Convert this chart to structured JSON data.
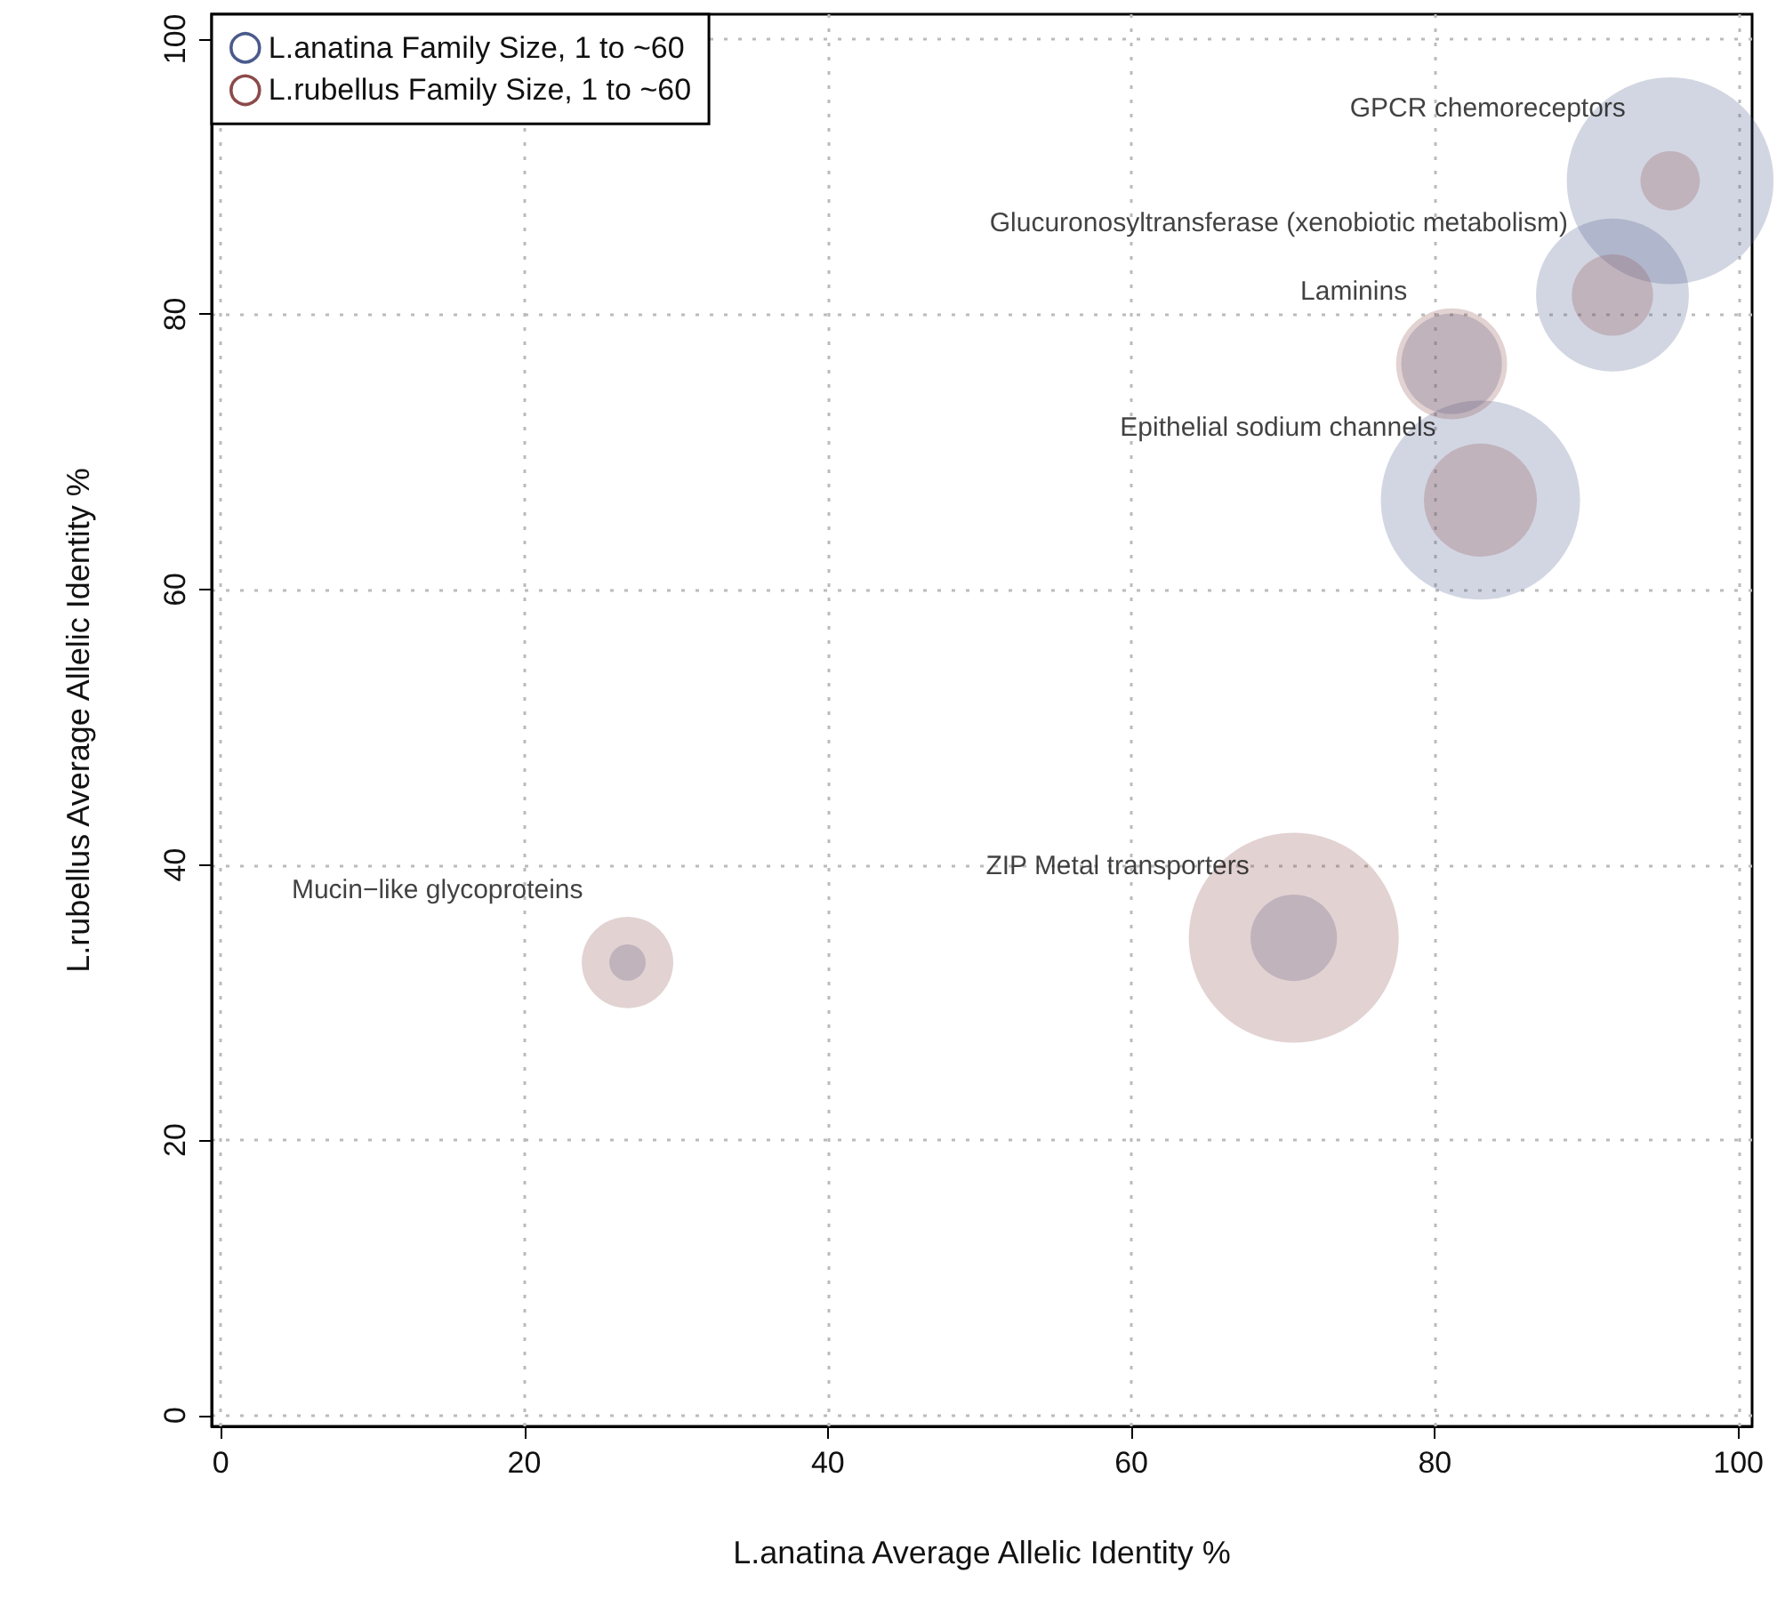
{
  "chart_data": {
    "type": "bubble",
    "xlabel": "L.anatina Average Allelic Identity %",
    "ylabel": "L.rubellus Average Allelic Identity %",
    "x": [
      95.5,
      91.7,
      81.1,
      83.0,
      70.7,
      26.8
    ],
    "series": [
      {
        "name": "L.anatina Family Size, 1 to ~60",
        "color": "#4a5a8c",
        "values": [
          89.7,
          81.4,
          76.4,
          66.5,
          34.7,
          32.9
        ],
        "sizes": [
          0.97,
          0.53,
          0.23,
          0.9,
          0.17,
          0.03
        ]
      },
      {
        "name": "L.rubellus Family Size, 1 to ~60",
        "color": "#8c4a4a",
        "values": [
          89.7,
          81.4,
          76.4,
          66.5,
          34.7,
          32.9
        ],
        "sizes": [
          0.08,
          0.15,
          0.28,
          0.29,
          1,
          0.19
        ]
      }
    ],
    "annotations": [
      {
        "text": "GPCR chemoreceptors",
        "x": 95.5,
        "y": 89.7
      },
      {
        "text": "Glucuronosyltransferase (xenobiotic metabolism)",
        "x": 91.7,
        "y": 81.4
      },
      {
        "text": "Laminins",
        "x": 81.1,
        "y": 76.4
      },
      {
        "text": "Epithelial sodium channels",
        "x": 83.0,
        "y": 66.5
      },
      {
        "text": "ZIP Metal transporters",
        "x": 70.7,
        "y": 34.7
      },
      {
        "text": "Mucin−like glycoproteins",
        "x": 26.8,
        "y": 32.9
      }
    ],
    "xlim": [
      -0.6,
      100.9
    ],
    "ylim": [
      -0.8,
      101.8
    ],
    "xticks": [
      0,
      20,
      40,
      60,
      80,
      100
    ],
    "yticks": [
      0,
      20,
      40,
      60,
      80,
      100
    ],
    "grid": true,
    "legend": "top left"
  }
}
